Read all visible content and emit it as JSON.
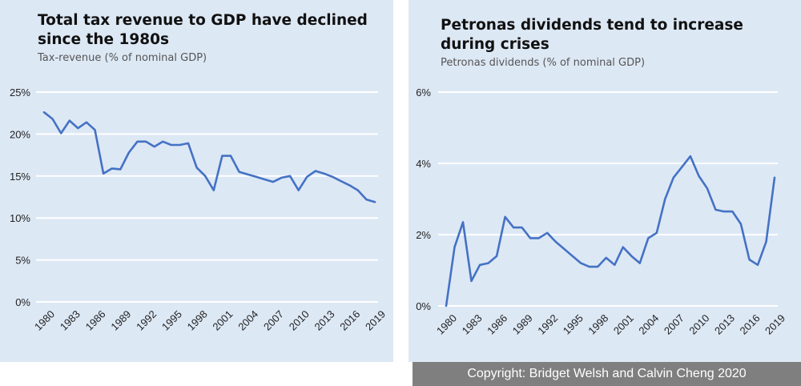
{
  "chart_data": [
    {
      "type": "line",
      "title": "Total tax revenue to GDP have declined since the 1980s",
      "subtitle": "Tax-revenue (% of nominal GDP)",
      "x": [
        1980,
        1981,
        1982,
        1983,
        1984,
        1985,
        1986,
        1987,
        1988,
        1989,
        1990,
        1991,
        1992,
        1993,
        1994,
        1995,
        1996,
        1997,
        1998,
        1999,
        2000,
        2001,
        2002,
        2003,
        2004,
        2005,
        2006,
        2007,
        2008,
        2009,
        2010,
        2011,
        2012,
        2013,
        2014,
        2015,
        2016,
        2017,
        2018,
        2019
      ],
      "series": [
        {
          "values": [
            22.6,
            21.8,
            20.1,
            21.6,
            20.7,
            21.4,
            20.5,
            15.3,
            15.9,
            15.8,
            17.8,
            19.1,
            19.1,
            18.5,
            19.1,
            18.7,
            18.7,
            18.9,
            16.0,
            15.0,
            13.3,
            17.4,
            17.4,
            15.5,
            15.2,
            14.9,
            14.6,
            14.3,
            14.8,
            15.0,
            13.3,
            14.9,
            15.6,
            15.3,
            14.9,
            14.4,
            13.9,
            13.3,
            12.2,
            11.9
          ],
          "color": "#4472c4"
        }
      ],
      "xticks": [
        "1980",
        "1983",
        "1986",
        "1989",
        "1992",
        "1995",
        "1998",
        "2001",
        "2004",
        "2007",
        "2010",
        "2013",
        "2016",
        "2019"
      ],
      "yticks": [
        "0%",
        "5%",
        "10%",
        "15%",
        "20%",
        "25%"
      ],
      "ylim": [
        0,
        25
      ],
      "grid": true,
      "legend": "none"
    },
    {
      "type": "line",
      "title": "Petronas dividends tend to increase during crises",
      "subtitle": "Petronas dividends (% of nominal GDP)",
      "x": [
        1980,
        1981,
        1982,
        1983,
        1984,
        1985,
        1986,
        1987,
        1988,
        1989,
        1990,
        1991,
        1992,
        1993,
        1994,
        1995,
        1996,
        1997,
        1998,
        1999,
        2000,
        2001,
        2002,
        2003,
        2004,
        2005,
        2006,
        2007,
        2008,
        2009,
        2010,
        2011,
        2012,
        2013,
        2014,
        2015,
        2016,
        2017,
        2018,
        2019
      ],
      "series": [
        {
          "values": [
            0.0,
            1.65,
            2.35,
            0.7,
            1.15,
            1.2,
            1.4,
            2.5,
            2.2,
            2.2,
            1.9,
            1.9,
            2.05,
            1.8,
            1.6,
            1.4,
            1.2,
            1.1,
            1.1,
            1.35,
            1.15,
            1.65,
            1.4,
            1.2,
            1.9,
            2.05,
            3.0,
            3.6,
            3.9,
            4.2,
            3.65,
            3.3,
            2.7,
            2.65,
            2.65,
            2.3,
            1.3,
            1.15,
            1.8,
            3.6
          ],
          "color": "#4472c4"
        }
      ],
      "xticks": [
        "1980",
        "1983",
        "1986",
        "1989",
        "1992",
        "1995",
        "1998",
        "2001",
        "2004",
        "2007",
        "2010",
        "2013",
        "2016",
        "2019"
      ],
      "yticks": [
        "0%",
        "2%",
        "4%",
        "6%"
      ],
      "ylim": [
        0,
        6
      ],
      "grid": true,
      "legend": "none"
    }
  ],
  "footer": {
    "copyright": "Copyright: Bridget Welsh and Calvin Cheng 2020"
  }
}
